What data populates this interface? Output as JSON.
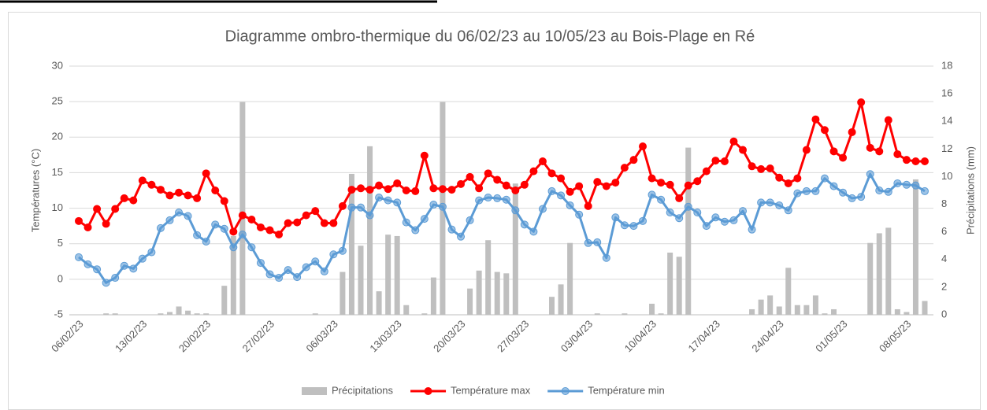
{
  "chart_data": {
    "type": "combo",
    "title": "Diagramme ombro-thermique du 06/02/23 au 10/05/23 au Bois-Plage en Ré",
    "y_label": "Températures (°C)",
    "y2_label": "Précipitations (mm)",
    "categories": [
      "06/02/23",
      null,
      null,
      null,
      null,
      null,
      null,
      "13/02/23",
      null,
      null,
      null,
      null,
      null,
      null,
      "20/02/23",
      null,
      null,
      null,
      null,
      null,
      null,
      "27/02/23",
      null,
      null,
      null,
      null,
      null,
      null,
      "06/03/23",
      null,
      null,
      null,
      null,
      null,
      null,
      "13/03/23",
      null,
      null,
      null,
      null,
      null,
      null,
      "20/03/23",
      null,
      null,
      null,
      null,
      null,
      null,
      "27/03/23",
      null,
      null,
      null,
      null,
      null,
      null,
      "03/04/23",
      null,
      null,
      null,
      null,
      null,
      null,
      "10/04/23",
      null,
      null,
      null,
      null,
      null,
      null,
      "17/04/23",
      null,
      null,
      null,
      null,
      null,
      null,
      "24/04/23",
      null,
      null,
      null,
      null,
      null,
      null,
      "01/05/23",
      null,
      null,
      null,
      null,
      null,
      null,
      "08/05/23",
      null,
      null
    ],
    "ylim": [
      -5,
      30
    ],
    "yticks": [
      -5,
      0,
      5,
      10,
      15,
      20,
      25,
      30
    ],
    "y2lim": [
      0,
      18
    ],
    "y2ticks": [
      0,
      2,
      4,
      6,
      8,
      10,
      12,
      14,
      16,
      18
    ],
    "grid": true,
    "legend": "bottom",
    "series": [
      {
        "name": "Précipitations",
        "type": "bar",
        "axis": "y2",
        "color": "#bfbfbf",
        "values": [
          0,
          0,
          0,
          0.1,
          0.1,
          0,
          0,
          0,
          0,
          0.1,
          0.2,
          0.6,
          0.3,
          0.1,
          0.1,
          0,
          2.1,
          5.7,
          15.4,
          0,
          0,
          0,
          0,
          0,
          0,
          0,
          0.1,
          0,
          0,
          3.1,
          10.2,
          5,
          12.2,
          1.7,
          5.8,
          5.7,
          0.7,
          0,
          0.1,
          2.7,
          15.4,
          0,
          0,
          1.9,
          3.2,
          5.4,
          3.1,
          3,
          9.5,
          0,
          0,
          0,
          1.3,
          2.2,
          5.2,
          0,
          0,
          0.1,
          0,
          0,
          0.1,
          0,
          0,
          0.8,
          0.1,
          4.5,
          4.2,
          12.1,
          0,
          0,
          0,
          0,
          0,
          0,
          0.4,
          1.1,
          1.4,
          0.6,
          3.4,
          0.7,
          0.7,
          1.4,
          0.1,
          0.4,
          0,
          0,
          0,
          5.2,
          5.9,
          6.3,
          0.4,
          0.2,
          9.8,
          1
        ]
      },
      {
        "name": "Température max",
        "type": "line",
        "color": "#ff0000",
        "values": [
          8.2,
          7.3,
          9.9,
          7.8,
          9.9,
          11.4,
          11.1,
          13.9,
          13.3,
          12.6,
          11.8,
          12.2,
          11.8,
          11.4,
          14.9,
          12.5,
          11,
          6.7,
          9,
          8.4,
          7.3,
          6.9,
          6.3,
          7.9,
          8,
          9,
          9.6,
          7.9,
          7.9,
          10.3,
          12.6,
          12.8,
          12.6,
          13.2,
          12.7,
          13.5,
          12.5,
          12.4,
          17.4,
          12.8,
          12.7,
          12.6,
          13.4,
          14.4,
          12.8,
          14.9,
          14,
          13.2,
          12.5,
          13.3,
          15.2,
          16.6,
          14.9,
          14.2,
          12.3,
          13.1,
          10.3,
          13.7,
          13.1,
          13.6,
          15.7,
          16.8,
          18.7,
          14.2,
          13.6,
          13.3,
          11.4,
          13.2,
          13.8,
          15.2,
          16.7,
          16.6,
          19.4,
          18.2,
          15.9,
          15.5,
          15.6,
          14.3,
          13.5,
          14.2,
          18.2,
          22.5,
          21,
          18,
          17.1,
          20.7,
          24.9,
          18.5,
          18,
          22.4,
          17.6,
          16.8,
          16.6,
          16.6
        ]
      },
      {
        "name": "Température min",
        "type": "line",
        "color": "#5b9bd5",
        "values": [
          3.1,
          2.1,
          1.4,
          -0.5,
          0.2,
          1.9,
          1.5,
          2.9,
          3.8,
          7.2,
          8.3,
          9.4,
          8.9,
          6.2,
          5.3,
          7.7,
          7.1,
          4.5,
          6.3,
          4.5,
          2.3,
          0.7,
          0.2,
          1.3,
          0.3,
          1.7,
          2.5,
          1.1,
          3.5,
          4,
          10.1,
          10.1,
          9,
          11.5,
          11.1,
          10.8,
          8,
          6.9,
          8.5,
          10.5,
          10.2,
          7,
          6,
          8.3,
          11.1,
          11.5,
          11.4,
          11.2,
          9.7,
          7.7,
          6.7,
          9.9,
          12.4,
          11.8,
          10.4,
          9.1,
          5.1,
          5.2,
          3,
          8.7,
          7.6,
          7.5,
          8.2,
          11.9,
          11.2,
          9.4,
          8.6,
          10.2,
          9.4,
          7.5,
          8.7,
          8.1,
          8.3,
          9.6,
          7,
          10.8,
          10.8,
          10.4,
          9.7,
          12.1,
          12.4,
          12.4,
          14.2,
          13.1,
          12.2,
          11.4,
          11.6,
          14.8,
          12.5,
          12.3,
          13.5,
          13.3,
          13.2,
          12.4
        ]
      }
    ]
  }
}
